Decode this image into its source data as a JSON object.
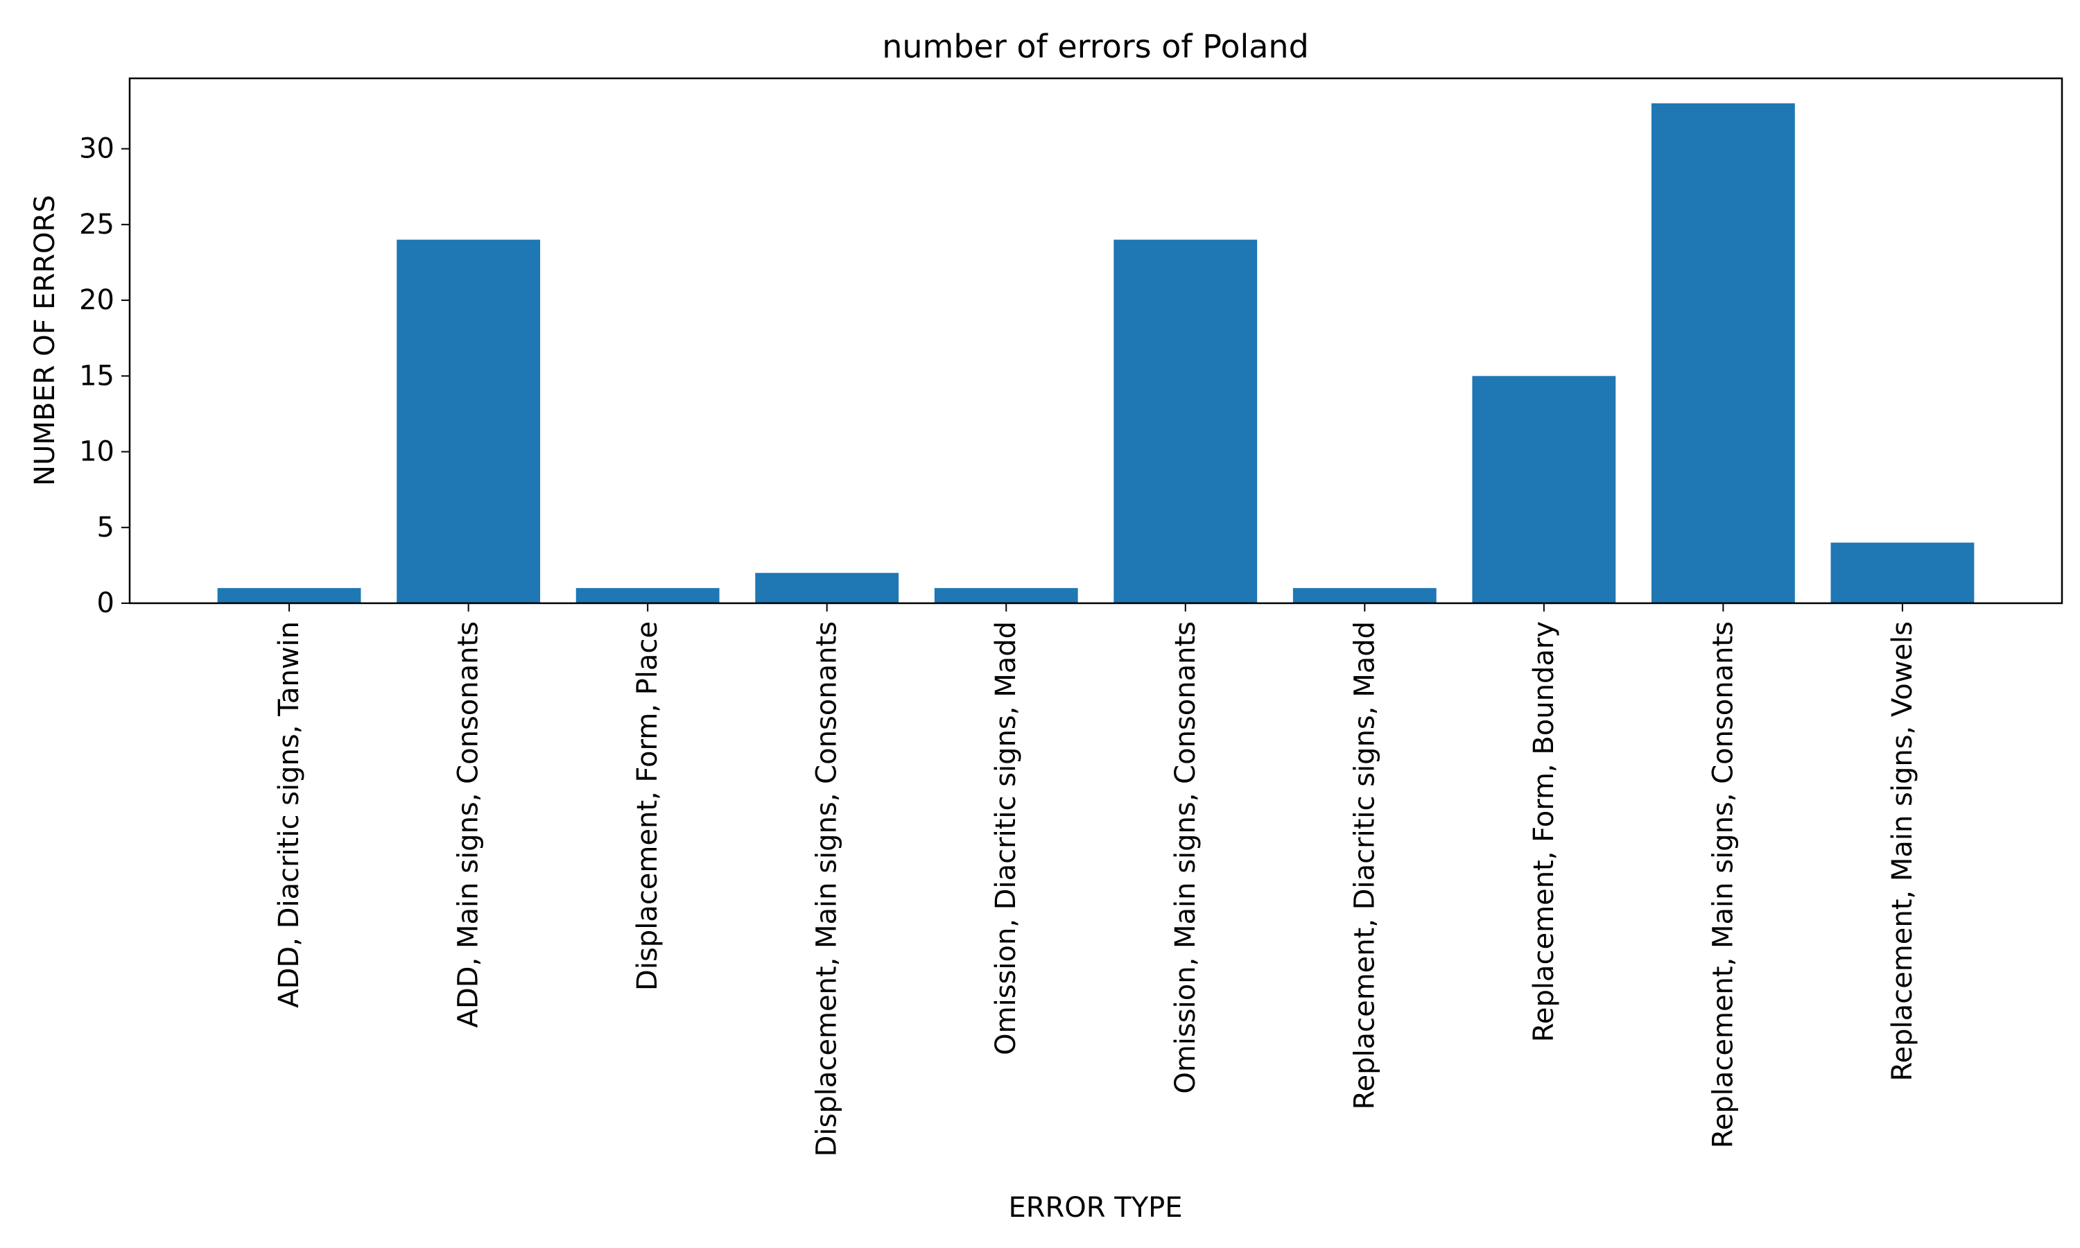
{
  "chart_data": {
    "type": "bar",
    "title": "number of errors of Poland",
    "xlabel": "ERROR TYPE",
    "ylabel": "NUMBER OF ERRORS",
    "categories": [
      "ADD, Diacritic signs, Tanwin",
      "ADD, Main signs, Consonants",
      "Displacement, Form, Place",
      "Displacement, Main signs, Consonants",
      "Omission, Diacritic signs, Madd",
      "Omission, Main signs, Consonants",
      "Replacement, Diacritic signs, Madd",
      "Replacement, Form, Boundary",
      "Replacement, Main signs, Consonants",
      "Replacement, Main signs, Vowels"
    ],
    "values": [
      1,
      24,
      1,
      2,
      1,
      24,
      1,
      15,
      33,
      4
    ],
    "ylim": [
      0,
      34.65
    ],
    "yticks": [
      0,
      5,
      10,
      15,
      20,
      25,
      30
    ],
    "grid": false,
    "bar_color": "#1f77b4"
  }
}
